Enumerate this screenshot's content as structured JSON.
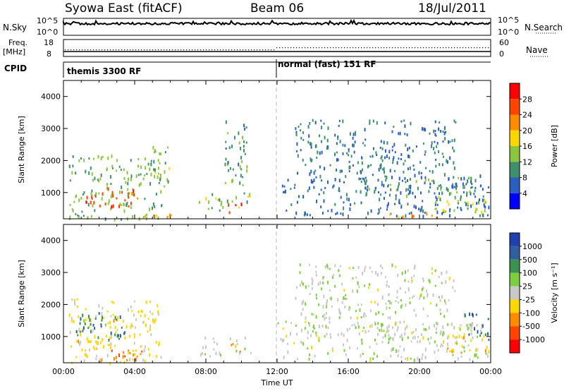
{
  "header": {
    "radar": "Syowa East (fitACF)",
    "beam": "Beam 06",
    "date": "18/Jul/2011"
  },
  "aux_panels": {
    "nsky_label": "N.Sky",
    "nsky_ticks": [
      "10^5",
      "10^0"
    ],
    "nsearch_label": "N.Search",
    "nsearch_ticks": [
      "10^5",
      "10^0"
    ],
    "freq_label_line1": "Freq.",
    "freq_label_line2": "[MHz]",
    "freq_ticks": [
      "18",
      "8"
    ],
    "nave_label": "Nave",
    "nave_ticks": [
      "60",
      "0"
    ],
    "cpid_label": "CPID",
    "cpid_modes": [
      {
        "label": "themis 3300 RF",
        "start_hour": 0
      },
      {
        "label": "normal (fast) 151 RF",
        "start_hour": 12
      }
    ]
  },
  "colors": {
    "power_scale": [
      "#0000ff",
      "#2a5fc0",
      "#3e8f6c",
      "#8cc63f",
      "#ffd700",
      "#ff8c00",
      "#ff4500",
      "#ff0000"
    ],
    "velocity_scale": [
      "#2040b0",
      "#2f5fa0",
      "#3c9050",
      "#7ccf3e",
      "#c8c8c8",
      "#ffd700",
      "#ff8c00",
      "#ff4500",
      "#ff0000"
    ]
  },
  "chart_data": [
    {
      "type": "heatmap",
      "xlabel": "",
      "ylabel": "Slant Range [km]",
      "xlim": [
        0,
        24
      ],
      "ylim": [
        180,
        4500
      ],
      "yticks": [
        "1000",
        "2000",
        "3000",
        "4000"
      ],
      "xticks": [],
      "colorbar": {
        "label": "Power [dB]",
        "range": [
          0,
          32
        ],
        "ticks": [
          "4",
          "8",
          "12",
          "16",
          "20",
          "24",
          "28"
        ]
      },
      "regions": [
        {
          "t0": 0.3,
          "t1": 5.5,
          "r0": 200,
          "r1": 2200,
          "value": 12
        },
        {
          "t0": 1.2,
          "t1": 4.2,
          "r0": 600,
          "r1": 1200,
          "value": 26
        },
        {
          "t0": 4.0,
          "t1": 6.2,
          "r0": 250,
          "r1": 400,
          "value": 22
        },
        {
          "t0": 5.0,
          "t1": 6.0,
          "r0": 1200,
          "r1": 2500,
          "value": 14
        },
        {
          "t0": 7.5,
          "t1": 10.5,
          "r0": 400,
          "r1": 1000,
          "value": 14
        },
        {
          "t0": 9.0,
          "t1": 10.0,
          "r0": 350,
          "r1": 700,
          "value": 28
        },
        {
          "t0": 9.0,
          "t1": 10.3,
          "r0": 1000,
          "r1": 3300,
          "value": 10
        },
        {
          "t0": 12.0,
          "t1": 23.9,
          "r0": 300,
          "r1": 1600,
          "value": 7
        },
        {
          "t0": 16.5,
          "t1": 23.5,
          "r0": 900,
          "r1": 1500,
          "value": 10
        },
        {
          "t0": 18.0,
          "t1": 21.0,
          "r0": 250,
          "r1": 400,
          "value": 22
        },
        {
          "t0": 20.5,
          "t1": 23.8,
          "r0": 400,
          "r1": 900,
          "value": 16
        },
        {
          "t0": 13.0,
          "t1": 22.0,
          "r0": 1600,
          "r1": 3300,
          "value": 8
        }
      ]
    },
    {
      "type": "heatmap",
      "xlabel": "Time UT",
      "ylabel": "Slant Range [km]",
      "xlim": [
        0,
        24
      ],
      "ylim": [
        180,
        4500
      ],
      "yticks": [
        "1000",
        "2000",
        "3000",
        "4000"
      ],
      "xticks": [
        "00:00",
        "04:00",
        "08:00",
        "12:00",
        "16:00",
        "20:00",
        "00:00"
      ],
      "colorbar": {
        "label": "Velocity [m s⁻¹]",
        "range": [
          -1200,
          1200
        ],
        "ticks": [
          "1000",
          "500",
          "100",
          "25",
          "-25",
          "-100",
          "-500",
          "-1000"
        ]
      },
      "regions": [
        {
          "t0": 0.3,
          "t1": 5.5,
          "r0": 200,
          "r1": 2200,
          "value": -200
        },
        {
          "t0": 0.5,
          "t1": 3.5,
          "r0": 900,
          "r1": 1800,
          "value": 600
        },
        {
          "t0": 2.0,
          "t1": 4.5,
          "r0": 200,
          "r1": 600,
          "value": -600
        },
        {
          "t0": 7.5,
          "t1": 10.5,
          "r0": 400,
          "r1": 1000,
          "value": 80
        },
        {
          "t0": 9.3,
          "t1": 10.0,
          "r0": 400,
          "r1": 800,
          "value": -400
        },
        {
          "t0": 12.0,
          "t1": 23.9,
          "r0": 300,
          "r1": 1500,
          "value": 60
        },
        {
          "t0": 16.5,
          "t1": 23.5,
          "r0": 1000,
          "r1": 1500,
          "value": 5
        },
        {
          "t0": 21.5,
          "t1": 23.9,
          "r0": 500,
          "r1": 1100,
          "value": -300
        },
        {
          "t0": 22.5,
          "t1": 23.9,
          "r0": 900,
          "r1": 1800,
          "value": 800
        },
        {
          "t0": 13.0,
          "t1": 22.0,
          "r0": 1600,
          "r1": 3300,
          "value": 40
        }
      ]
    }
  ]
}
